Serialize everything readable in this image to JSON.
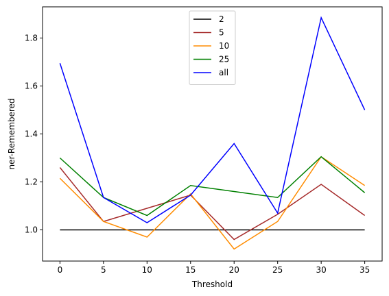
{
  "chart_data": {
    "type": "line",
    "title": "",
    "xlabel": "Threshold",
    "ylabel": "ner-Remembered",
    "x": [
      0,
      5,
      10,
      15,
      20,
      25,
      30,
      35
    ],
    "xlim": [
      -2,
      37
    ],
    "ylim": [
      0.87,
      1.93
    ],
    "xticks": [
      0,
      5,
      10,
      15,
      20,
      25,
      30,
      35
    ],
    "yticks": [
      1.0,
      1.2,
      1.4,
      1.6,
      1.8
    ],
    "ytick_labels": [
      "1.0",
      "1.2",
      "1.4",
      "1.6",
      "1.8"
    ],
    "grid": false,
    "legend_position": "top-center",
    "series": [
      {
        "name": "2",
        "color": "#000000",
        "values": [
          1.0,
          1.0,
          1.0,
          1.0,
          1.0,
          1.0,
          1.0,
          1.0
        ]
      },
      {
        "name": "5",
        "color": "#a52a2a",
        "values": [
          1.26,
          1.035,
          1.09,
          1.145,
          0.96,
          1.065,
          1.19,
          1.06
        ]
      },
      {
        "name": "10",
        "color": "#ff8c00",
        "values": [
          1.215,
          1.035,
          0.97,
          1.15,
          0.92,
          1.035,
          1.305,
          1.185
        ]
      },
      {
        "name": "25",
        "color": "#008000",
        "values": [
          1.3,
          1.135,
          1.06,
          1.185,
          1.16,
          1.135,
          1.305,
          1.155
        ]
      },
      {
        "name": "all",
        "color": "#0000ff",
        "values": [
          1.695,
          1.135,
          1.03,
          1.145,
          1.36,
          1.07,
          1.885,
          1.5
        ]
      }
    ]
  }
}
